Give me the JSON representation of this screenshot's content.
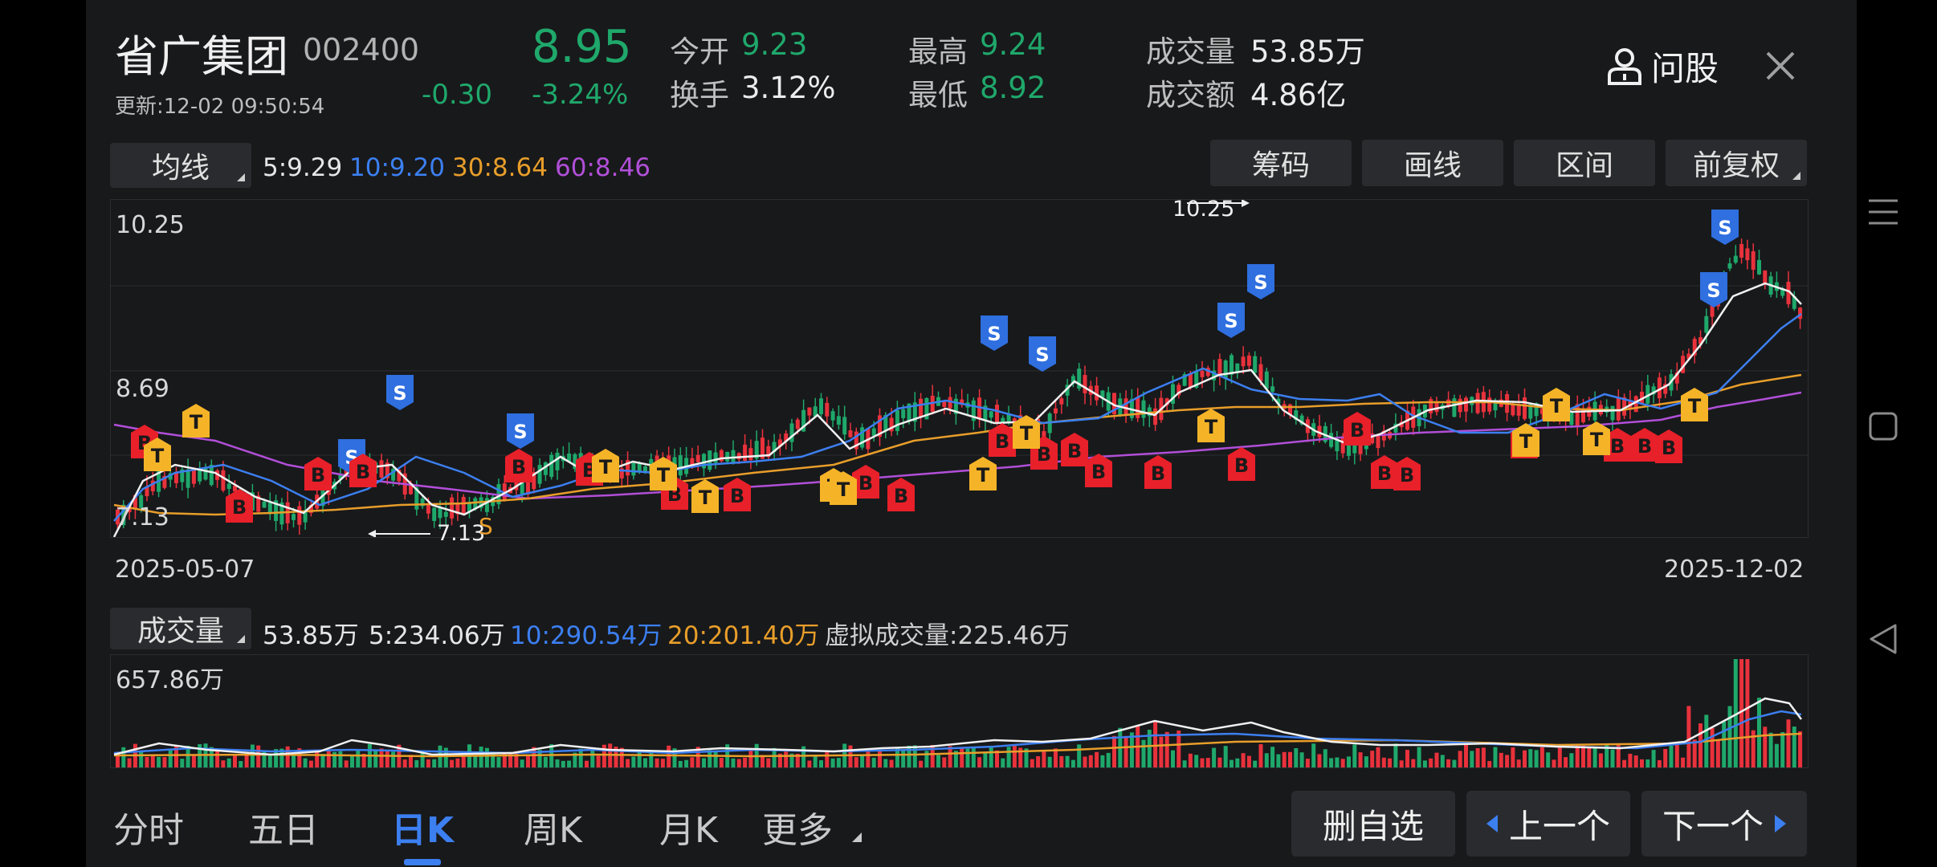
{
  "stock": {
    "name": "省广集团",
    "code": "002400",
    "update_time": "更新:12-02 09:50:54",
    "price": "8.95",
    "change": "-0.30",
    "change_pct": "-3.24%"
  },
  "quotes": {
    "open_label": "今开",
    "open": "9.23",
    "turnover_label": "换手",
    "turnover": "3.12%",
    "high_label": "最高",
    "high": "9.24",
    "low_label": "最低",
    "low": "8.92",
    "volume_label": "成交量",
    "volume": "53.85万",
    "amount_label": "成交额",
    "amount": "4.86亿"
  },
  "header_actions": {
    "ask_label": "问股"
  },
  "ma_bar": {
    "selector": "均线",
    "ma5": "5:9.29",
    "ma10": "10:9.20",
    "ma30": "30:8.64",
    "ma60": "60:8.46"
  },
  "tools": {
    "chips": "筹码",
    "draw": "画线",
    "range": "区间",
    "adjust": "前复权"
  },
  "colors": {
    "up": "#e8323c",
    "down": "#1fa86b",
    "ma5": "#f0f0f0",
    "ma10": "#3c7ff0",
    "ma30": "#e89e2a",
    "ma60": "#b14fd8",
    "badge_s": "#2f6fe0",
    "badge_b": "#e8202a",
    "badge_t": "#f5b428"
  },
  "kline": {
    "y_top": "10.25",
    "y_mid": "8.69",
    "y_bottom": "7.13",
    "max_marker": "10.25",
    "min_marker": "7.13",
    "date_start": "2025-05-07",
    "date_end": "2025-12-02",
    "badge_s": "S",
    "badge_b": "B",
    "badge_t": "T",
    "low_s_marker": "S"
  },
  "volume_bar": {
    "selector": "成交量",
    "vol": "53.85万",
    "ma5": "5:234.06万",
    "ma10": "10:290.54万",
    "ma20": "20:201.40万",
    "virtual": "虚拟成交量:225.46万",
    "y_top": "657.86万"
  },
  "tabs": {
    "t0": "分时",
    "t1": "五日",
    "t2": "日K",
    "t3": "周K",
    "t4": "月K",
    "more": "更多"
  },
  "nav": {
    "remove": "删自选",
    "prev": "上一个",
    "next": "下一个"
  },
  "icons": {
    "person": "person-icon",
    "close": "close-icon",
    "menu": "menu-icon",
    "square": "square-icon",
    "back": "back-icon"
  }
}
